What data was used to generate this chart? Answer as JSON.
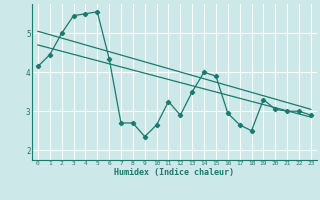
{
  "xlabel": "Humidex (Indice chaleur)",
  "bg_color": "#cce8e8",
  "grid_color": "#ffffff",
  "line_color": "#1a7a6e",
  "xlim": [
    -0.5,
    23.5
  ],
  "ylim": [
    1.75,
    5.75
  ],
  "yticks": [
    2,
    3,
    4,
    5
  ],
  "xticks": [
    0,
    1,
    2,
    3,
    4,
    5,
    6,
    7,
    8,
    9,
    10,
    11,
    12,
    13,
    14,
    15,
    16,
    17,
    18,
    19,
    20,
    21,
    22,
    23
  ],
  "series1_x": [
    0,
    1,
    2,
    3,
    4,
    5,
    6,
    7,
    8,
    9,
    10,
    11,
    12,
    13,
    14,
    15,
    16,
    17,
    18,
    19,
    20,
    21,
    22,
    23
  ],
  "series1_y": [
    4.15,
    4.45,
    5.0,
    5.45,
    5.5,
    5.55,
    4.35,
    2.7,
    2.7,
    2.35,
    2.65,
    3.25,
    2.9,
    3.5,
    4.0,
    3.9,
    2.95,
    2.65,
    2.5,
    3.3,
    3.05,
    3.0,
    3.0,
    2.9
  ],
  "trend1_x": [
    0,
    23
  ],
  "trend1_y": [
    5.05,
    3.05
  ],
  "trend2_x": [
    0,
    23
  ],
  "trend2_y": [
    4.7,
    2.85
  ]
}
